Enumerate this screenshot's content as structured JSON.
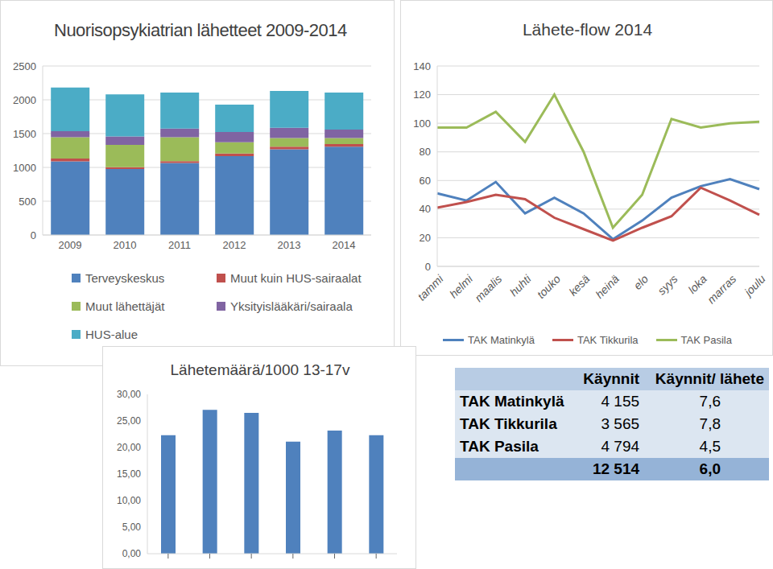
{
  "chart_data": [
    {
      "type": "bar",
      "stacked": true,
      "title": "Nuorisopsykiatrian lähetteet 2009-2014",
      "categories": [
        "2009",
        "2010",
        "2011",
        "2012",
        "2013",
        "2014"
      ],
      "series": [
        {
          "name": "Terveyskeskus",
          "color": "#4F81BD",
          "values": [
            1090,
            977,
            1066,
            1168,
            1269,
            1307
          ]
        },
        {
          "name": "Muut kuin HUS-sairaalat",
          "color": "#C0504D",
          "values": [
            40,
            25,
            25,
            38,
            38,
            38
          ]
        },
        {
          "name": "Muut lähettäjät",
          "color": "#9BBB59",
          "values": [
            317,
            330,
            356,
            165,
            127,
            89
          ]
        },
        {
          "name": "Yksityislääkäri/sairaala",
          "color": "#8064A2",
          "values": [
            88,
            127,
            127,
            152,
            152,
            127
          ]
        },
        {
          "name": "HUS-alue",
          "color": "#4BACC6",
          "values": [
            648,
            622,
            533,
            406,
            546,
            546
          ]
        }
      ],
      "ylim": [
        0,
        2500
      ],
      "yticks": [
        0,
        500,
        1000,
        1500,
        2000,
        2500
      ],
      "grid": true,
      "legend": "bottom"
    },
    {
      "type": "line",
      "title": "Lähete-flow 2014",
      "categories": [
        "tammi",
        "helmi",
        "maalis",
        "huhti",
        "touko",
        "kesä",
        "heinä",
        "elo",
        "syys",
        "loka",
        "marras",
        "joulu"
      ],
      "series": [
        {
          "name": "TAK Matinkylä",
          "color": "#4F81BD",
          "values": [
            51,
            46,
            59,
            37,
            48,
            37,
            19,
            32,
            48,
            56,
            61,
            54
          ]
        },
        {
          "name": "TAK Tikkurila",
          "color": "#C0504D",
          "values": [
            41,
            45,
            50,
            47,
            34,
            26,
            18,
            27,
            35,
            55,
            46,
            36
          ]
        },
        {
          "name": "TAK Pasila",
          "color": "#9BBB59",
          "values": [
            97,
            97,
            108,
            87,
            120,
            80,
            27,
            50,
            103,
            97,
            100,
            101
          ]
        }
      ],
      "ylim": [
        0,
        140
      ],
      "yticks": [
        0,
        20,
        40,
        60,
        80,
        100,
        120,
        140
      ],
      "grid": true,
      "legend": "bottom"
    },
    {
      "type": "bar",
      "title": "Lähetemäärä/1000 13-17v",
      "categories": [
        null,
        null,
        null,
        null,
        null,
        null
      ],
      "values": [
        22.3,
        27.1,
        26.5,
        21.1,
        23.2,
        22.3
      ],
      "color": "#4F81BD",
      "ylim": [
        0,
        30
      ],
      "yticks": [
        {
          "value": 0,
          "label": "0,00"
        },
        {
          "value": 5,
          "label": "5,00"
        },
        {
          "value": 10,
          "label": "10,00"
        },
        {
          "value": 15,
          "label": "15,00"
        },
        {
          "value": 20,
          "label": "20,00"
        },
        {
          "value": 25,
          "label": "25,00"
        },
        {
          "value": 30,
          "label": "30,00"
        }
      ],
      "grid": false
    }
  ],
  "table": {
    "columns": [
      "Käynnit",
      "Käynnit/ lähete"
    ],
    "rows": [
      {
        "label": "TAK Matinkylä",
        "values": [
          "4 155",
          "7,6"
        ]
      },
      {
        "label": "TAK Tikkurila",
        "values": [
          "3 565",
          "7,8"
        ]
      },
      {
        "label": "TAK Pasila",
        "values": [
          "4 794",
          "4,5"
        ]
      }
    ],
    "total": [
      "12 514",
      "6,0"
    ]
  }
}
